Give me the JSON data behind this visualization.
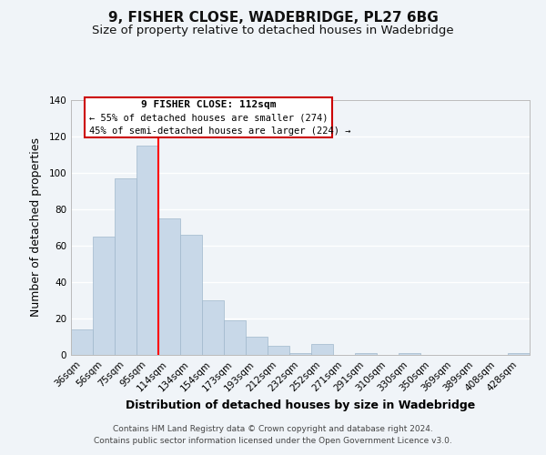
{
  "title": "9, FISHER CLOSE, WADEBRIDGE, PL27 6BG",
  "subtitle": "Size of property relative to detached houses in Wadebridge",
  "xlabel": "Distribution of detached houses by size in Wadebridge",
  "ylabel": "Number of detached properties",
  "bin_labels": [
    "36sqm",
    "56sqm",
    "75sqm",
    "95sqm",
    "114sqm",
    "134sqm",
    "154sqm",
    "173sqm",
    "193sqm",
    "212sqm",
    "232sqm",
    "252sqm",
    "271sqm",
    "291sqm",
    "310sqm",
    "330sqm",
    "350sqm",
    "369sqm",
    "389sqm",
    "408sqm",
    "428sqm"
  ],
  "bar_values": [
    14,
    65,
    97,
    115,
    75,
    66,
    30,
    19,
    10,
    5,
    1,
    6,
    0,
    1,
    0,
    1,
    0,
    0,
    0,
    0,
    1
  ],
  "bar_color": "#c8d8e8",
  "bar_edge_color": "#a0b8cc",
  "vline_x_index": 4,
  "vline_color": "red",
  "ylim": [
    0,
    140
  ],
  "yticks": [
    0,
    20,
    40,
    60,
    80,
    100,
    120,
    140
  ],
  "annotation_box_text_line1": "9 FISHER CLOSE: 112sqm",
  "annotation_box_text_line2": "← 55% of detached houses are smaller (274)",
  "annotation_box_text_line3": "45% of semi-detached houses are larger (224) →",
  "footer_line1": "Contains HM Land Registry data © Crown copyright and database right 2024.",
  "footer_line2": "Contains public sector information licensed under the Open Government Licence v3.0.",
  "background_color": "#f0f4f8",
  "grid_color": "#ffffff",
  "title_fontsize": 11,
  "subtitle_fontsize": 9.5,
  "axis_label_fontsize": 9,
  "tick_fontsize": 7.5,
  "footer_fontsize": 6.5
}
